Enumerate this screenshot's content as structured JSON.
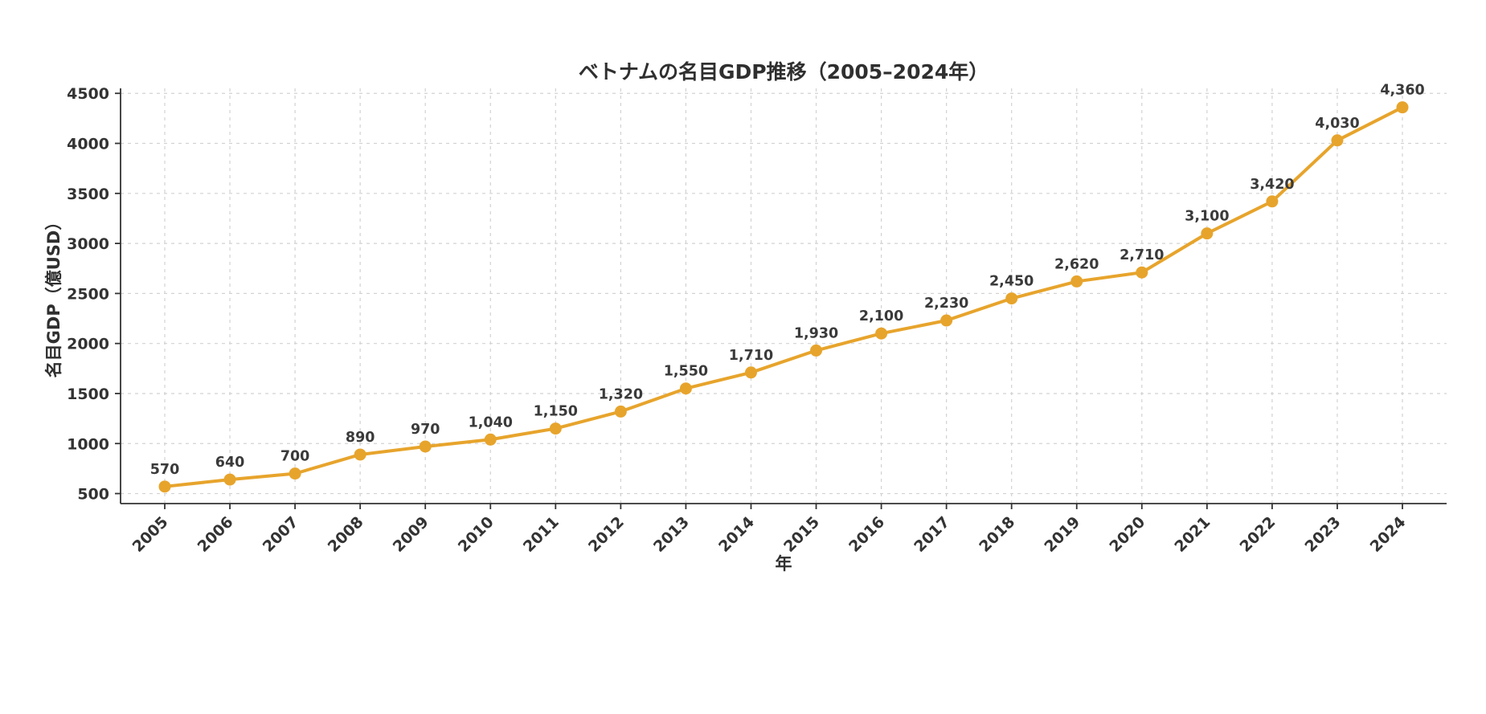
{
  "chart_data": {
    "type": "line",
    "title": "ベトナムの名目GDP推移（2005–2024年）",
    "xlabel": "年",
    "ylabel": "名目GDP（億USD）",
    "categories": [
      "2005",
      "2006",
      "2007",
      "2008",
      "2009",
      "2010",
      "2011",
      "2012",
      "2013",
      "2014",
      "2015",
      "2016",
      "2017",
      "2018",
      "2019",
      "2020",
      "2021",
      "2022",
      "2023",
      "2024"
    ],
    "values": [
      570,
      640,
      700,
      890,
      970,
      1040,
      1150,
      1320,
      1550,
      1710,
      1930,
      2100,
      2230,
      2450,
      2620,
      2710,
      3100,
      3420,
      4030,
      4360
    ],
    "point_labels": [
      "570",
      "640",
      "700",
      "890",
      "970",
      "1,040",
      "1,150",
      "1,320",
      "1,550",
      "1,710",
      "1,930",
      "2,100",
      "2,230",
      "2,450",
      "2,620",
      "2,710",
      "3,100",
      "3,420",
      "4,030",
      "4,360"
    ],
    "yticks": [
      500,
      1000,
      1500,
      2000,
      2500,
      3000,
      3500,
      4000,
      4500
    ],
    "ylim": [
      400,
      4550
    ],
    "grid": true,
    "grid_style": "dashed",
    "legend_position": "none",
    "line_color": "#E7A42C",
    "marker_color": "#E7A42C",
    "grid_color": "#d2d2d2",
    "axis_color": "#333333",
    "text_color": "#333333",
    "background": "#ffffff"
  }
}
